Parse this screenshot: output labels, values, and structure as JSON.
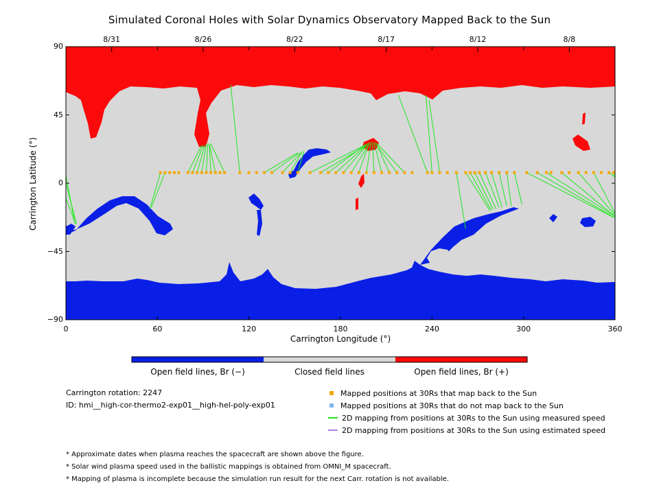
{
  "colors": {
    "open_negative": "#0a1fe6",
    "closed": "#d8d8d8",
    "open_positive": "#fa0a0a",
    "mapped_point": "#f5a800",
    "unmapped_point": "#7fb6ee",
    "measured_speed_line": "#1ee81e",
    "estimated_speed_line": "#b37fe6"
  },
  "chart_data": {
    "type": "heatmap",
    "title": "Simulated Coronal Holes with Solar Dynamics Observatory Mapped Back to the Sun",
    "xlabel": "Carrington Longitude (°)",
    "ylabel": "Carrington Latitude (°)",
    "xlim": [
      0,
      360
    ],
    "ylim": [
      -90,
      90
    ],
    "x_ticks": [
      "0",
      "60",
      "120",
      "180",
      "240",
      "300",
      "360"
    ],
    "y_ticks": [
      "90",
      "45",
      "0",
      "−45",
      "−90"
    ],
    "top_axis": {
      "label_positions_lon": [
        30,
        90,
        150,
        210,
        270,
        330
      ],
      "labels": [
        "8/31",
        "8/26",
        "8/22",
        "8/17",
        "8/12",
        "8/8"
      ]
    },
    "colorbar": {
      "categories": [
        "Open field lines, Br (−)",
        "Closed field lines",
        "Open field lines, Br (+)"
      ]
    },
    "mapped_points_lat": 7,
    "mapped_points_lon": [
      62,
      65,
      68,
      71,
      74,
      80,
      83,
      86,
      89,
      92,
      95,
      98,
      101,
      104,
      114,
      120,
      125,
      130,
      135,
      142,
      147,
      152,
      160,
      167,
      172,
      177,
      182,
      187,
      192,
      197,
      202,
      207,
      212,
      217,
      222,
      227,
      237,
      240,
      245,
      250,
      256,
      262,
      265,
      268,
      271,
      275,
      279,
      284,
      289,
      294,
      302,
      309,
      315,
      318,
      325,
      330,
      336,
      341,
      346,
      351,
      356,
      359
    ],
    "mapping_lines": [
      {
        "from": [
          62,
          7
        ],
        "to": [
          55,
          -17
        ]
      },
      {
        "from": [
          65,
          7
        ],
        "to": [
          56,
          -16
        ]
      },
      {
        "from": [
          80,
          7
        ],
        "to": [
          89,
          25
        ]
      },
      {
        "from": [
          83,
          7
        ],
        "to": [
          90,
          25
        ]
      },
      {
        "from": [
          86,
          7
        ],
        "to": [
          91,
          25
        ]
      },
      {
        "from": [
          89,
          7
        ],
        "to": [
          92,
          26
        ]
      },
      {
        "from": [
          92,
          7
        ],
        "to": [
          93,
          26
        ]
      },
      {
        "from": [
          95,
          7
        ],
        "to": [
          94,
          26
        ]
      },
      {
        "from": [
          98,
          7
        ],
        "to": [
          94,
          26
        ]
      },
      {
        "from": [
          104,
          7
        ],
        "to": [
          95,
          26
        ]
      },
      {
        "from": [
          114,
          7
        ],
        "to": [
          108,
          65
        ]
      },
      {
        "from": [
          130,
          7
        ],
        "to": [
          152,
          20
        ]
      },
      {
        "from": [
          135,
          7
        ],
        "to": [
          153,
          20
        ]
      },
      {
        "from": [
          142,
          7
        ],
        "to": [
          154,
          20
        ]
      },
      {
        "from": [
          147,
          7
        ],
        "to": [
          155,
          21
        ]
      },
      {
        "from": [
          152,
          7
        ],
        "to": [
          156,
          21
        ]
      },
      {
        "from": [
          160,
          7
        ],
        "to": [
          196,
          25
        ]
      },
      {
        "from": [
          167,
          7
        ],
        "to": [
          197,
          25
        ]
      },
      {
        "from": [
          172,
          7
        ],
        "to": [
          197,
          26
        ]
      },
      {
        "from": [
          177,
          7
        ],
        "to": [
          198,
          26
        ]
      },
      {
        "from": [
          182,
          7
        ],
        "to": [
          198,
          26
        ]
      },
      {
        "from": [
          187,
          7
        ],
        "to": [
          199,
          26
        ]
      },
      {
        "from": [
          192,
          7
        ],
        "to": [
          199,
          27
        ]
      },
      {
        "from": [
          197,
          7
        ],
        "to": [
          200,
          27
        ]
      },
      {
        "from": [
          202,
          7
        ],
        "to": [
          201,
          27
        ]
      },
      {
        "from": [
          207,
          7
        ],
        "to": [
          202,
          27
        ]
      },
      {
        "from": [
          212,
          7
        ],
        "to": [
          203,
          27
        ]
      },
      {
        "from": [
          217,
          7
        ],
        "to": [
          203,
          26
        ]
      },
      {
        "from": [
          222,
          7
        ],
        "to": [
          204,
          26
        ]
      },
      {
        "from": [
          237,
          7
        ],
        "to": [
          218,
          58
        ]
      },
      {
        "from": [
          240,
          7
        ],
        "to": [
          236,
          58
        ]
      },
      {
        "from": [
          245,
          7
        ],
        "to": [
          238,
          55
        ]
      },
      {
        "from": [
          256,
          7
        ],
        "to": [
          262,
          -30
        ]
      },
      {
        "from": [
          262,
          7
        ],
        "to": [
          278,
          -18
        ]
      },
      {
        "from": [
          265,
          7
        ],
        "to": [
          279,
          -18
        ]
      },
      {
        "from": [
          268,
          7
        ],
        "to": [
          280,
          -17
        ]
      },
      {
        "from": [
          271,
          7
        ],
        "to": [
          282,
          -17
        ]
      },
      {
        "from": [
          275,
          7
        ],
        "to": [
          284,
          -16
        ]
      },
      {
        "from": [
          279,
          7
        ],
        "to": [
          286,
          -16
        ]
      },
      {
        "from": [
          284,
          7
        ],
        "to": [
          289,
          -15
        ]
      },
      {
        "from": [
          289,
          7
        ],
        "to": [
          292,
          -15
        ]
      },
      {
        "from": [
          294,
          7
        ],
        "to": [
          299,
          -14
        ]
      },
      {
        "from": [
          302,
          7
        ],
        "to": [
          360,
          -23
        ]
      },
      {
        "from": [
          309,
          7
        ],
        "to": [
          360,
          -23
        ]
      },
      {
        "from": [
          315,
          7
        ],
        "to": [
          360,
          -22
        ]
      },
      {
        "from": [
          325,
          7
        ],
        "to": [
          360,
          -22
        ]
      },
      {
        "from": [
          336,
          7
        ],
        "to": [
          360,
          -21
        ]
      },
      {
        "from": [
          346,
          7
        ],
        "to": [
          360,
          -20
        ]
      },
      {
        "from": [
          356,
          7
        ],
        "to": [
          360,
          4
        ]
      },
      {
        "from": [
          359,
          7
        ],
        "to": [
          360,
          4
        ]
      },
      {
        "from": [
          0,
          0
        ],
        "to": [
          7,
          -27
        ]
      },
      {
        "from": [
          0,
          -10
        ],
        "to": [
          6,
          -26
        ]
      },
      {
        "from": [
          0,
          5
        ],
        "to": [
          6,
          -27
        ]
      }
    ]
  },
  "info": {
    "carrington_rotation": "Carrington rotation: 2247",
    "id": "ID: hmi__high-cor-thermo2-exp01__high-hel-poly-exp01"
  },
  "legend": {
    "mapped": "Mapped positions at 30Rs that map back to the Sun",
    "unmapped": "Mapped positions at 30Rs that do not map back to the Sun",
    "measured": "2D mapping from positions at 30Rs to the Sun using measured speed",
    "estimated": "2D mapping from positions at 30Rs to the Sun using estimated speed"
  },
  "notes": [
    "* Approximate dates when plasma reaches the spacecraft are shown above the figure.",
    "* Solar wind plasma speed used in the ballistic mappings is obtained from OMNI_M spacecraft.",
    "* Mapping of plasma is incomplete because the simulation run result for the next Carr. rotation is not available."
  ]
}
